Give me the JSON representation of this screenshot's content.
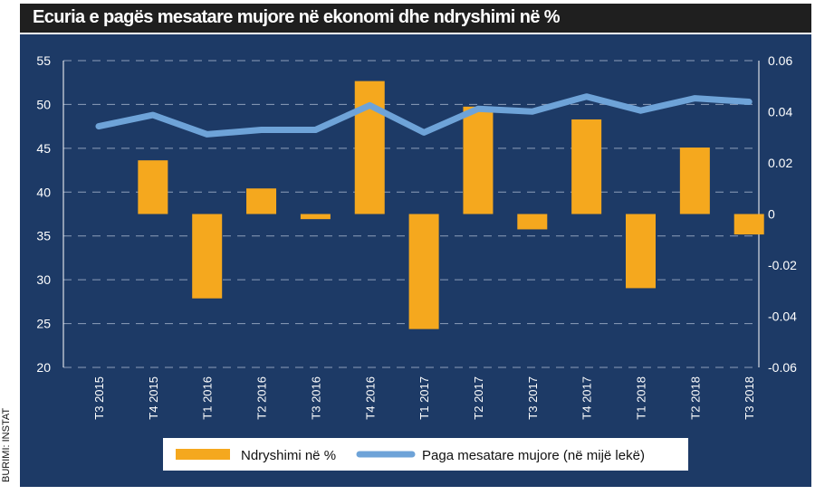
{
  "title": "Ecuria e pagës mesatare mujore në ekonomi dhe ndryshimi në %",
  "source": "BURIMI: INSTAT",
  "colors": {
    "panel": "#1d3a66",
    "bar": "#f5a81e",
    "line": "#6ea3d8",
    "grid": "#a9b8cf",
    "text": "#ffffff"
  },
  "chart_data": {
    "type": "bar",
    "categories": [
      "T3 2015",
      "T4 2015",
      "T1 2016",
      "T2 2016",
      "T3 2016",
      "T4 2016",
      "T1 2017",
      "T2 2017",
      "T3 2017",
      "T4 2017",
      "T1 2018",
      "T2 2018",
      "T3 2018"
    ],
    "series": [
      {
        "name": "Ndryshimi në %",
        "type": "bar",
        "axis": "right",
        "values": [
          0,
          0.021,
          -0.033,
          0.01,
          -0.002,
          0.052,
          -0.045,
          0.042,
          -0.006,
          0.037,
          -0.029,
          0.026,
          -0.008
        ]
      },
      {
        "name": "Paga mesatare mujore (në mijë lekë)",
        "type": "line",
        "axis": "left",
        "values": [
          47.5,
          48.8,
          46.6,
          47.1,
          47.1,
          49.9,
          46.8,
          49.5,
          49.2,
          50.9,
          49.3,
          50.7,
          50.3
        ]
      }
    ],
    "y_left": {
      "ylim": [
        20,
        55
      ],
      "ticks": [
        "20",
        "25",
        "30",
        "35",
        "40",
        "45",
        "50",
        "55"
      ]
    },
    "y_right": {
      "ylim": [
        -0.06,
        0.06
      ],
      "ticks": [
        "-0.06",
        "-0.04",
        "-0.02",
        "0",
        "0.02",
        "0.04",
        "0.06"
      ]
    },
    "legend": {
      "position": "bottom",
      "items": [
        "Ndryshimi në %",
        "Paga mesatare mujore (në mijë lekë)"
      ]
    },
    "grid": true
  }
}
